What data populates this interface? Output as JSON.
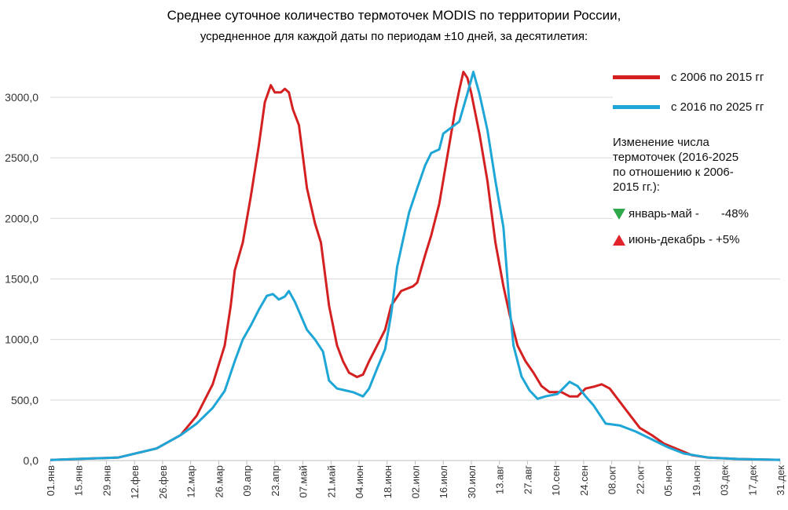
{
  "chart_data": {
    "type": "line",
    "title": "Среднее суточное количество термоточек MODIS по территории России,",
    "subtitle": "усредненное для каждой даты по периодам ±10 дней, за десятилетия:",
    "xlabel": "",
    "ylabel": "",
    "x_unit": "day of year (0 = 01.янв)",
    "xlim": [
      0,
      364
    ],
    "ylim": [
      0,
      3250
    ],
    "grid": true,
    "legend_position": "right",
    "yticks": [
      0,
      500,
      1000,
      1500,
      2000,
      2500,
      3000
    ],
    "ytick_labels": [
      "0,0",
      "500,0",
      "1000,0",
      "1500,0",
      "2000,0",
      "2500,0",
      "3000,0"
    ],
    "xtick_days": [
      0,
      14,
      28,
      42,
      56,
      70,
      84,
      98,
      112,
      126,
      140,
      154,
      168,
      182,
      196,
      210,
      224,
      238,
      252,
      266,
      280,
      294,
      308,
      322,
      336,
      350,
      364
    ],
    "xtick_labels": [
      "01.янв",
      "15.янв",
      "29.янв",
      "12.фев",
      "26.фев",
      "12.мар",
      "26.мар",
      "09.апр",
      "23.апр",
      "07.май",
      "21.май",
      "04.июн",
      "18.июн",
      "02.июл",
      "16.июл",
      "30.июл",
      "13.авг",
      "27.авг",
      "10.сен",
      "24.сен",
      "08.окт",
      "22.окт",
      "05.ноя",
      "19.ноя",
      "03.дек",
      "17.дек",
      "31.дек"
    ],
    "series": [
      {
        "name": "с 2006 по 2015 гг",
        "color": "#d42020",
        "points": [
          [
            0,
            5
          ],
          [
            34,
            25
          ],
          [
            53,
            100
          ],
          [
            65,
            210
          ],
          [
            73,
            370
          ],
          [
            81,
            630
          ],
          [
            87,
            950
          ],
          [
            90,
            1280
          ],
          [
            92,
            1570
          ],
          [
            96,
            1800
          ],
          [
            100,
            2180
          ],
          [
            104,
            2600
          ],
          [
            107,
            2960
          ],
          [
            110,
            3100
          ],
          [
            112,
            3040
          ],
          [
            115,
            3040
          ],
          [
            117,
            3070
          ],
          [
            119,
            3040
          ],
          [
            121,
            2900
          ],
          [
            124,
            2770
          ],
          [
            128,
            2250
          ],
          [
            132,
            1960
          ],
          [
            135,
            1800
          ],
          [
            139,
            1280
          ],
          [
            143,
            950
          ],
          [
            146,
            820
          ],
          [
            149,
            725
          ],
          [
            153,
            690
          ],
          [
            156,
            710
          ],
          [
            159,
            820
          ],
          [
            163,
            950
          ],
          [
            167,
            1080
          ],
          [
            170,
            1280
          ],
          [
            175,
            1400
          ],
          [
            181,
            1440
          ],
          [
            183,
            1470
          ],
          [
            187,
            1700
          ],
          [
            190,
            1860
          ],
          [
            194,
            2120
          ],
          [
            198,
            2510
          ],
          [
            202,
            2900
          ],
          [
            204,
            3060
          ],
          [
            206,
            3210
          ],
          [
            208,
            3160
          ],
          [
            210,
            3030
          ],
          [
            214,
            2700
          ],
          [
            218,
            2310
          ],
          [
            222,
            1800
          ],
          [
            226,
            1440
          ],
          [
            229,
            1210
          ],
          [
            233,
            950
          ],
          [
            237,
            820
          ],
          [
            241,
            725
          ],
          [
            245,
            615
          ],
          [
            249,
            565
          ],
          [
            255,
            565
          ],
          [
            259,
            530
          ],
          [
            263,
            530
          ],
          [
            267,
            595
          ],
          [
            271,
            610
          ],
          [
            275,
            630
          ],
          [
            279,
            595
          ],
          [
            282,
            530
          ],
          [
            288,
            400
          ],
          [
            294,
            270
          ],
          [
            300,
            210
          ],
          [
            306,
            140
          ],
          [
            312,
            100
          ],
          [
            320,
            45
          ],
          [
            328,
            25
          ],
          [
            343,
            13
          ],
          [
            364,
            6
          ]
        ]
      },
      {
        "name": "с 2016 по 2025 гг",
        "color": "#1ea6d6",
        "points": [
          [
            0,
            5
          ],
          [
            34,
            25
          ],
          [
            53,
            100
          ],
          [
            65,
            210
          ],
          [
            73,
            305
          ],
          [
            81,
            435
          ],
          [
            87,
            575
          ],
          [
            92,
            820
          ],
          [
            96,
            1000
          ],
          [
            100,
            1115
          ],
          [
            104,
            1245
          ],
          [
            108,
            1360
          ],
          [
            111,
            1375
          ],
          [
            114,
            1330
          ],
          [
            117,
            1355
          ],
          [
            119,
            1400
          ],
          [
            122,
            1310
          ],
          [
            128,
            1080
          ],
          [
            132,
            1000
          ],
          [
            136,
            900
          ],
          [
            139,
            660
          ],
          [
            143,
            595
          ],
          [
            147,
            580
          ],
          [
            151,
            565
          ],
          [
            156,
            530
          ],
          [
            159,
            595
          ],
          [
            163,
            760
          ],
          [
            167,
            920
          ],
          [
            170,
            1210
          ],
          [
            173,
            1600
          ],
          [
            176,
            1830
          ],
          [
            179,
            2050
          ],
          [
            183,
            2250
          ],
          [
            187,
            2440
          ],
          [
            190,
            2540
          ],
          [
            194,
            2570
          ],
          [
            196,
            2700
          ],
          [
            200,
            2750
          ],
          [
            204,
            2800
          ],
          [
            208,
            3030
          ],
          [
            211,
            3210
          ],
          [
            214,
            3030
          ],
          [
            218,
            2730
          ],
          [
            222,
            2310
          ],
          [
            226,
            1925
          ],
          [
            229,
            1280
          ],
          [
            231,
            950
          ],
          [
            235,
            695
          ],
          [
            239,
            580
          ],
          [
            243,
            510
          ],
          [
            247,
            530
          ],
          [
            253,
            550
          ],
          [
            259,
            650
          ],
          [
            263,
            615
          ],
          [
            267,
            530
          ],
          [
            271,
            455
          ],
          [
            277,
            305
          ],
          [
            284,
            290
          ],
          [
            292,
            240
          ],
          [
            300,
            175
          ],
          [
            308,
            110
          ],
          [
            316,
            58
          ],
          [
            328,
            25
          ],
          [
            343,
            13
          ],
          [
            364,
            6
          ]
        ]
      }
    ],
    "annotation": {
      "heading": "Изменение числа термоточек (2016-2025 по отношению к 2006-2015 гг.):",
      "items": [
        {
          "label": "январь-май -",
          "value": "-48%",
          "direction": "down",
          "color": "#2ea84a"
        },
        {
          "label": "июнь-декабрь -",
          "value": "+5%",
          "direction": "up",
          "color": "#e0242a"
        }
      ]
    }
  }
}
